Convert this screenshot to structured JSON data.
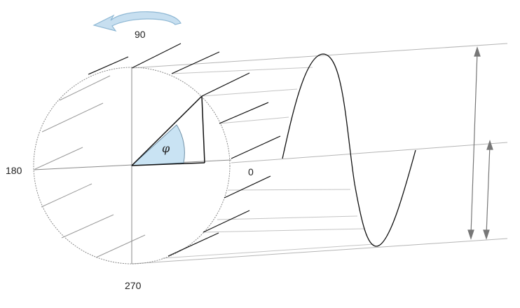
{
  "labels": {
    "top": "90",
    "left": "180",
    "right": "0",
    "bottom": "270",
    "angle": "φ"
  },
  "colors": {
    "rotation_arrow": "#c7dff0",
    "angle_fill": "#c9e3f3",
    "guide": "#a9a9a9",
    "ink": "#111111"
  },
  "icons": {
    "rotation": "curved-rotation-arrow"
  }
}
